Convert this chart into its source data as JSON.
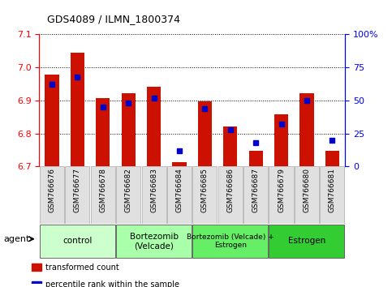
{
  "title": "GDS4089 / ILMN_1800374",
  "samples": [
    "GSM766676",
    "GSM766677",
    "GSM766678",
    "GSM766682",
    "GSM766683",
    "GSM766684",
    "GSM766685",
    "GSM766686",
    "GSM766687",
    "GSM766679",
    "GSM766680",
    "GSM766681"
  ],
  "red_values": [
    6.978,
    7.045,
    6.908,
    6.922,
    6.942,
    6.713,
    6.897,
    6.822,
    6.748,
    6.858,
    6.922,
    6.748
  ],
  "blue_percentile": [
    62,
    68,
    45,
    48,
    52,
    12,
    44,
    28,
    18,
    32,
    50,
    20
  ],
  "ylim_left": [
    6.7,
    7.1
  ],
  "ylim_right": [
    0,
    100
  ],
  "yticks_left": [
    6.7,
    6.8,
    6.9,
    7.0,
    7.1
  ],
  "yticks_right": [
    0,
    25,
    50,
    75,
    100
  ],
  "ytick_labels_right": [
    "0",
    "25",
    "50",
    "75",
    "100%"
  ],
  "groups": [
    {
      "label": "control",
      "start": 0,
      "end": 3,
      "color": "#ccffcc"
    },
    {
      "label": "Bortezomib\n(Velcade)",
      "start": 3,
      "end": 6,
      "color": "#aaffaa"
    },
    {
      "label": "Bortezomib (Velcade) +\nEstrogen",
      "start": 6,
      "end": 9,
      "color": "#66ee66"
    },
    {
      "label": "Estrogen",
      "start": 9,
      "end": 12,
      "color": "#33cc33"
    }
  ],
  "bar_bottom": 6.7,
  "red_color": "#cc1100",
  "blue_color": "#0000cc",
  "legend_red": "transformed count",
  "legend_blue": "percentile rank within the sample",
  "agent_label": "agent"
}
